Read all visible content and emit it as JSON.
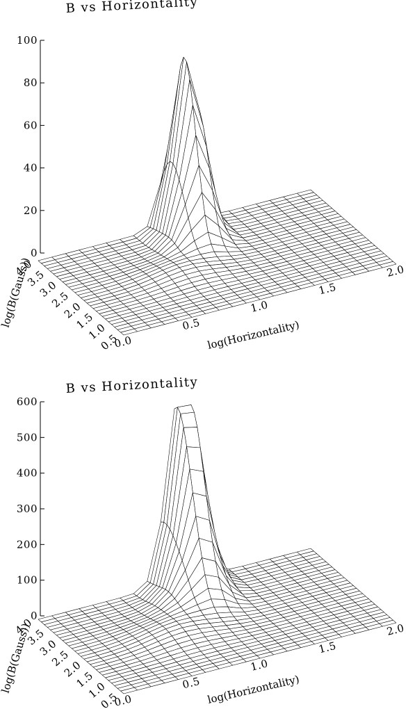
{
  "chart_data": [
    {
      "type": "surface",
      "title": "B vs Horizontality",
      "xlabel": "log(Horizontality)",
      "ylabel": "log(B(Gauss))",
      "xlim": [
        0.0,
        2.0
      ],
      "ylim": [
        0.5,
        4.0
      ],
      "zlim": [
        0,
        100
      ],
      "x_ticks": [
        "0.0",
        "0.5",
        "1.0",
        "1.5",
        "2.0"
      ],
      "y_ticks": [
        "0.5",
        "1.0",
        "1.5",
        "2.0",
        "2.5",
        "3.0",
        "3.5",
        "4.0"
      ],
      "z_ticks": [
        "0",
        "20",
        "40",
        "60",
        "80",
        "100"
      ],
      "grid": {
        "nx": 21,
        "ny": 29
      },
      "peaks": [
        {
          "x": 1.02,
          "y": 3.6,
          "z": 84,
          "sx": 0.09,
          "sy": 0.42
        },
        {
          "x": 0.95,
          "y": 3.0,
          "z": 9,
          "sx": 0.12,
          "sy": 0.3
        },
        {
          "x": 0.75,
          "y": 2.2,
          "z": 4,
          "sx": 0.2,
          "sy": 0.45
        }
      ]
    },
    {
      "type": "surface",
      "title": "B vs Horizontality",
      "xlabel": "log(Horizontality)",
      "ylabel": "log(B(Gauss))",
      "xlim": [
        0.0,
        2.0
      ],
      "ylim": [
        0.5,
        4.0
      ],
      "zlim": [
        0,
        600
      ],
      "x_ticks": [
        "0.0",
        "0.5",
        "1.0",
        "1.5",
        "2.0"
      ],
      "y_ticks": [
        "0.5",
        "1.0",
        "1.5",
        "2.0",
        "2.5",
        "3.0",
        "3.5",
        "4.0"
      ],
      "z_ticks": [
        "0",
        "100",
        "200",
        "300",
        "400",
        "500",
        "600"
      ],
      "grid": {
        "nx": 21,
        "ny": 29
      },
      "peaks": [
        {
          "x": 1.05,
          "y": 3.9,
          "z": 560,
          "sx": 0.1,
          "sy": 0.55
        },
        {
          "x": 0.95,
          "y": 3.1,
          "z": 60,
          "sx": 0.15,
          "sy": 0.4
        },
        {
          "x": 0.7,
          "y": 2.2,
          "z": 28,
          "sx": 0.22,
          "sy": 0.5
        }
      ]
    }
  ]
}
